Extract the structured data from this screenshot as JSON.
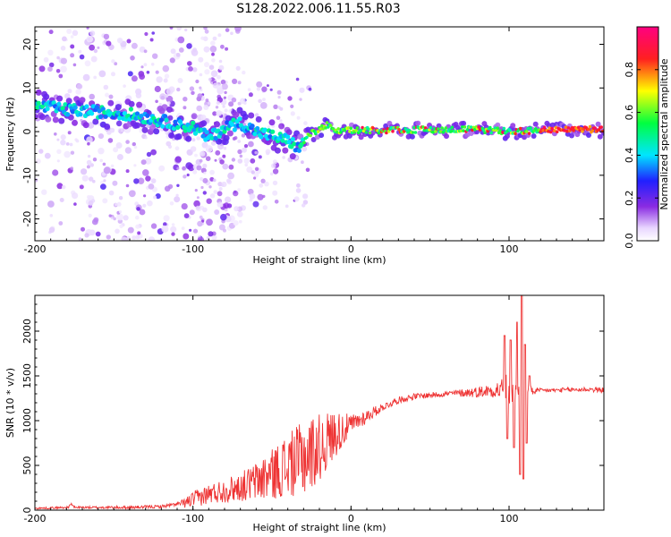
{
  "title": "S128.2022.006.11.55.R03",
  "chart_data": [
    {
      "type": "heatmap",
      "xlabel": "Height of straight line (km)",
      "ylabel": "Frequency (Hz)",
      "xlim": [
        -200,
        160
      ],
      "ylim": [
        -25,
        24
      ],
      "xticks": [
        -200,
        -100,
        0,
        100
      ],
      "yticks": [
        -20,
        -10,
        0,
        10,
        20
      ],
      "xtick_labels": [
        "-200",
        "-100",
        "0",
        "100"
      ],
      "ytick_labels": [
        "-20",
        "-10",
        "0",
        "10",
        "20"
      ],
      "colorbar": {
        "label": "Normalized spectral amplitude",
        "range": [
          0,
          1
        ],
        "ticks": [
          0.0,
          0.2,
          0.4,
          0.6,
          0.8
        ],
        "tick_labels": [
          "0.0",
          "0.2",
          "0.4",
          "0.6",
          "0.8"
        ],
        "colormap": "rainbow (white-purple-blue-cyan-green-yellow-red-magenta)"
      },
      "ridge": [
        {
          "x": -200,
          "y": 6
        },
        {
          "x": -180,
          "y": 5
        },
        {
          "x": -160,
          "y": 4.5
        },
        {
          "x": -140,
          "y": 4
        },
        {
          "x": -120,
          "y": 2.5
        },
        {
          "x": -100,
          "y": 1
        },
        {
          "x": -90,
          "y": -1.5
        },
        {
          "x": -80,
          "y": 1
        },
        {
          "x": -70,
          "y": 2
        },
        {
          "x": -60,
          "y": 0
        },
        {
          "x": -50,
          "y": -1
        },
        {
          "x": -40,
          "y": -2
        },
        {
          "x": -32,
          "y": -4
        },
        {
          "x": -28,
          "y": -1
        },
        {
          "x": -20,
          "y": 0.5
        },
        {
          "x": -15,
          "y": 1.5
        },
        {
          "x": -10,
          "y": 0
        },
        {
          "x": 0,
          "y": 0.3
        },
        {
          "x": 20,
          "y": 0.3
        },
        {
          "x": 50,
          "y": 0.5
        },
        {
          "x": 80,
          "y": 0.5
        },
        {
          "x": 100,
          "y": 0
        },
        {
          "x": 130,
          "y": 0.5
        },
        {
          "x": 160,
          "y": 0.5
        }
      ]
    },
    {
      "type": "line",
      "xlabel": "Height of straight line (km)",
      "ylabel": "SNR (10 * v/v)",
      "xlim": [
        -200,
        160
      ],
      "ylim": [
        0,
        2400
      ],
      "xticks": [
        -200,
        -100,
        0,
        100
      ],
      "yticks": [
        0,
        500,
        1000,
        1500,
        2000
      ],
      "xtick_labels": [
        "-200",
        "-100",
        "0",
        "100"
      ],
      "ytick_labels": [
        "0",
        "500",
        "1000",
        "1500",
        "2000"
      ],
      "color": "#ee3333",
      "trend": [
        {
          "x": -200,
          "y": 20
        },
        {
          "x": -180,
          "y": 30
        },
        {
          "x": -160,
          "y": 30
        },
        {
          "x": -140,
          "y": 30
        },
        {
          "x": -120,
          "y": 40
        },
        {
          "x": -105,
          "y": 80
        },
        {
          "x": -100,
          "y": 120
        },
        {
          "x": -90,
          "y": 180
        },
        {
          "x": -80,
          "y": 220
        },
        {
          "x": -70,
          "y": 260
        },
        {
          "x": -60,
          "y": 320
        },
        {
          "x": -50,
          "y": 400
        },
        {
          "x": -40,
          "y": 500
        },
        {
          "x": -30,
          "y": 580
        },
        {
          "x": -20,
          "y": 700
        },
        {
          "x": -10,
          "y": 850
        },
        {
          "x": 0,
          "y": 950
        },
        {
          "x": 10,
          "y": 1050
        },
        {
          "x": 20,
          "y": 1150
        },
        {
          "x": 30,
          "y": 1230
        },
        {
          "x": 40,
          "y": 1270
        },
        {
          "x": 60,
          "y": 1300
        },
        {
          "x": 80,
          "y": 1320
        },
        {
          "x": 95,
          "y": 1350
        },
        {
          "x": 110,
          "y": 1330
        },
        {
          "x": 130,
          "y": 1340
        },
        {
          "x": 150,
          "y": 1350
        },
        {
          "x": 160,
          "y": 1340
        }
      ],
      "noise": [
        {
          "x": -200,
          "a": 10
        },
        {
          "x": -110,
          "a": 20
        },
        {
          "x": -100,
          "a": 90
        },
        {
          "x": -70,
          "a": 160
        },
        {
          "x": -50,
          "a": 280
        },
        {
          "x": -30,
          "a": 420
        },
        {
          "x": -20,
          "a": 380
        },
        {
          "x": -12,
          "a": 280
        },
        {
          "x": 0,
          "a": 120
        },
        {
          "x": 20,
          "a": 40
        },
        {
          "x": 60,
          "a": 30
        },
        {
          "x": 80,
          "a": 60
        },
        {
          "x": 90,
          "a": 80
        },
        {
          "x": 100,
          "a": 200
        },
        {
          "x": 110,
          "a": 80
        },
        {
          "x": 120,
          "a": 25
        },
        {
          "x": 160,
          "a": 30
        }
      ],
      "peaks": [
        {
          "x": 97,
          "y": 1950
        },
        {
          "x": 99,
          "y": 800
        },
        {
          "x": 101,
          "y": 1900
        },
        {
          "x": 103,
          "y": 700
        },
        {
          "x": 105,
          "y": 2100
        },
        {
          "x": 107,
          "y": 400
        },
        {
          "x": 108,
          "y": 2400
        },
        {
          "x": 109,
          "y": 350
        },
        {
          "x": 110,
          "y": 1850
        },
        {
          "x": 111,
          "y": 750
        },
        {
          "x": 113,
          "y": 1500
        }
      ]
    }
  ]
}
